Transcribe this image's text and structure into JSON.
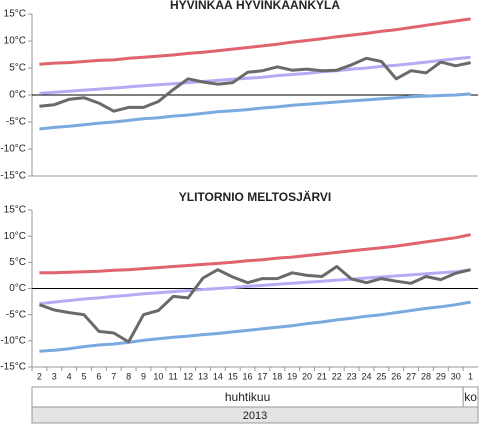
{
  "chart_data": [
    {
      "type": "line",
      "title": "HYVINKÄÄ HYVINKÄÄNKYLÄ",
      "ylim": [
        -15,
        15
      ],
      "yticks": [
        {
          "value": -15,
          "label": "-15°C"
        },
        {
          "value": -10,
          "label": "-10°C"
        },
        {
          "value": -5,
          "label": "-5°C"
        },
        {
          "value": 0,
          "label": "0°C"
        },
        {
          "value": 5,
          "label": "5°C"
        },
        {
          "value": 10,
          "label": "10°C"
        },
        {
          "value": 15,
          "label": "15°C"
        }
      ],
      "series": [
        {
          "color": "#e0636e",
          "values": [
            5.7,
            5.9,
            6.0,
            6.2,
            6.4,
            6.5,
            6.8,
            7.0,
            7.2,
            7.4,
            7.7,
            7.9,
            8.2,
            8.5,
            8.8,
            9.1,
            9.4,
            9.8,
            10.1,
            10.4,
            10.8,
            11.1,
            11.4,
            11.8,
            12.1,
            12.5,
            12.9,
            13.3,
            13.7,
            14.1
          ]
        },
        {
          "color": "#b9a9f5",
          "values": [
            0.3,
            0.5,
            0.7,
            0.9,
            1.1,
            1.3,
            1.5,
            1.7,
            1.9,
            2.1,
            2.3,
            2.5,
            2.7,
            2.9,
            3.1,
            3.3,
            3.6,
            3.8,
            4.0,
            4.3,
            4.5,
            4.8,
            5.0,
            5.3,
            5.5,
            5.8,
            6.1,
            6.4,
            6.7,
            7.0
          ]
        },
        {
          "color": "#7aaadf",
          "values": [
            -6.3,
            -6.0,
            -5.8,
            -5.5,
            -5.2,
            -5.0,
            -4.7,
            -4.4,
            -4.2,
            -3.9,
            -3.7,
            -3.4,
            -3.1,
            -2.9,
            -2.7,
            -2.4,
            -2.2,
            -1.9,
            -1.7,
            -1.5,
            -1.3,
            -1.1,
            -0.9,
            -0.7,
            -0.5,
            -0.3,
            -0.2,
            -0.1,
            0.0,
            0.2
          ]
        },
        {
          "color": "#6a6a6a",
          "values": [
            -2.1,
            -1.8,
            -0.8,
            -0.5,
            -1.5,
            -3.0,
            -2.3,
            -2.3,
            -1.2,
            1.0,
            3.0,
            2.4,
            2.0,
            2.3,
            4.2,
            4.5,
            5.2,
            4.6,
            4.8,
            4.5,
            4.6,
            5.6,
            6.8,
            6.2,
            3.0,
            4.5,
            4.1,
            6.1,
            5.4,
            6.0
          ]
        }
      ]
    },
    {
      "type": "line",
      "title": "YLITORNIO MELTOSJÄRVI",
      "ylim": [
        -15,
        15
      ],
      "yticks": [
        {
          "value": -15,
          "label": "-15°C"
        },
        {
          "value": -10,
          "label": "-10°C"
        },
        {
          "value": -5,
          "label": "-5°C"
        },
        {
          "value": 0,
          "label": "0°C"
        },
        {
          "value": 5,
          "label": "5°C"
        },
        {
          "value": 10,
          "label": "10°C"
        },
        {
          "value": 15,
          "label": "15°C"
        }
      ],
      "categories": [
        "2",
        "3",
        "4",
        "5",
        "6",
        "7",
        "8",
        "9",
        "10",
        "11",
        "12",
        "13",
        "14",
        "15",
        "16",
        "17",
        "18",
        "19",
        "20",
        "21",
        "22",
        "23",
        "24",
        "25",
        "26",
        "27",
        "28",
        "29",
        "30",
        "1"
      ],
      "months": [
        "huhtikuu",
        "ko"
      ],
      "year": "2013",
      "series": [
        {
          "color": "#e0636e",
          "values": [
            3.0,
            3.0,
            3.1,
            3.2,
            3.3,
            3.5,
            3.6,
            3.8,
            4.0,
            4.2,
            4.4,
            4.6,
            4.8,
            5.0,
            5.3,
            5.5,
            5.8,
            6.0,
            6.3,
            6.6,
            6.9,
            7.2,
            7.5,
            7.8,
            8.1,
            8.5,
            8.9,
            9.3,
            9.7,
            10.3
          ]
        },
        {
          "color": "#b9a9f5",
          "values": [
            -2.9,
            -2.6,
            -2.3,
            -2.0,
            -1.8,
            -1.5,
            -1.3,
            -1.0,
            -0.8,
            -0.6,
            -0.4,
            -0.2,
            0.0,
            0.2,
            0.4,
            0.6,
            0.8,
            1.0,
            1.2,
            1.4,
            1.6,
            1.8,
            2.0,
            2.2,
            2.4,
            2.6,
            2.8,
            3.0,
            3.2,
            3.6
          ]
        },
        {
          "color": "#7aaadf",
          "values": [
            -12.0,
            -11.8,
            -11.5,
            -11.1,
            -10.8,
            -10.6,
            -10.3,
            -9.9,
            -9.6,
            -9.3,
            -9.1,
            -8.8,
            -8.6,
            -8.3,
            -8.0,
            -7.7,
            -7.4,
            -7.1,
            -6.7,
            -6.4,
            -6.0,
            -5.7,
            -5.3,
            -5.0,
            -4.6,
            -4.2,
            -3.8,
            -3.5,
            -3.1,
            -2.6
          ]
        },
        {
          "color": "#6a6a6a",
          "values": [
            -3.1,
            -4.1,
            -4.6,
            -5.0,
            -8.2,
            -8.5,
            -10.2,
            -5.0,
            -4.2,
            -1.5,
            -1.8,
            2.0,
            3.6,
            2.2,
            1.1,
            1.9,
            1.9,
            3.0,
            2.5,
            2.3,
            4.2,
            1.8,
            1.1,
            1.9,
            1.4,
            1.0,
            2.3,
            1.7,
            2.9,
            3.6
          ]
        }
      ]
    }
  ]
}
